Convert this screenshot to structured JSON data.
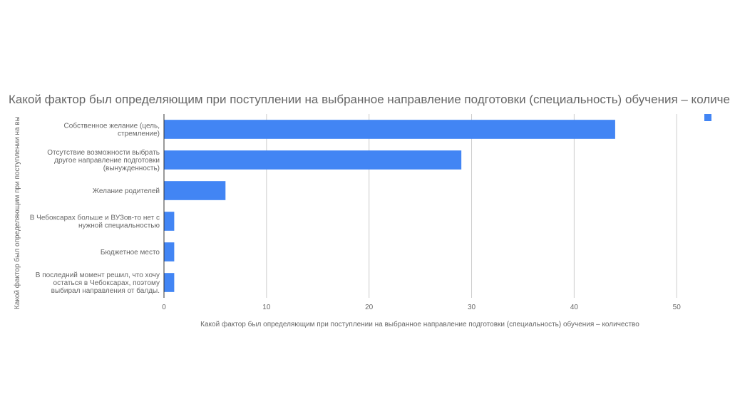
{
  "chart_data": {
    "type": "bar",
    "orientation": "horizontal",
    "title": "Какой фактор был определяющим при поступлении на выбранное направление подготовки (специальность) обучения – количество",
    "xlabel": "Какой фактор был определяющим при поступлении на выбранное направление подготовки (специальность) обучения – количество",
    "ylabel": "Какой фактор был определяющим при поступлении на вы...",
    "categories": [
      [
        "Собственное желание (цель,",
        "стремление)"
      ],
      [
        "Отсутствие возможности выбрать",
        "другое направление подготовки",
        "(вынужденность)"
      ],
      [
        "Желание родителей"
      ],
      [
        "В Чебоксарах больше и ВУЗов-то нет с",
        "нужной специальностью"
      ],
      [
        "Бюджетное место"
      ],
      [
        "В последний момент решил, что хочу",
        "остаться в Чебоксарах, поэтому",
        "выбирал направления от балды."
      ]
    ],
    "values": [
      44,
      29,
      6,
      1,
      1,
      1
    ],
    "xlim": [
      0,
      52
    ],
    "xticks": [
      "0",
      "10",
      "20",
      "30",
      "40",
      "50"
    ],
    "xtick_values": [
      0,
      10,
      20,
      30,
      40,
      50
    ],
    "grid": true,
    "legend_position": "top-right",
    "bar_color": "#4285f4",
    "grid_color": "#cccccc",
    "axis_color": "#333333"
  }
}
